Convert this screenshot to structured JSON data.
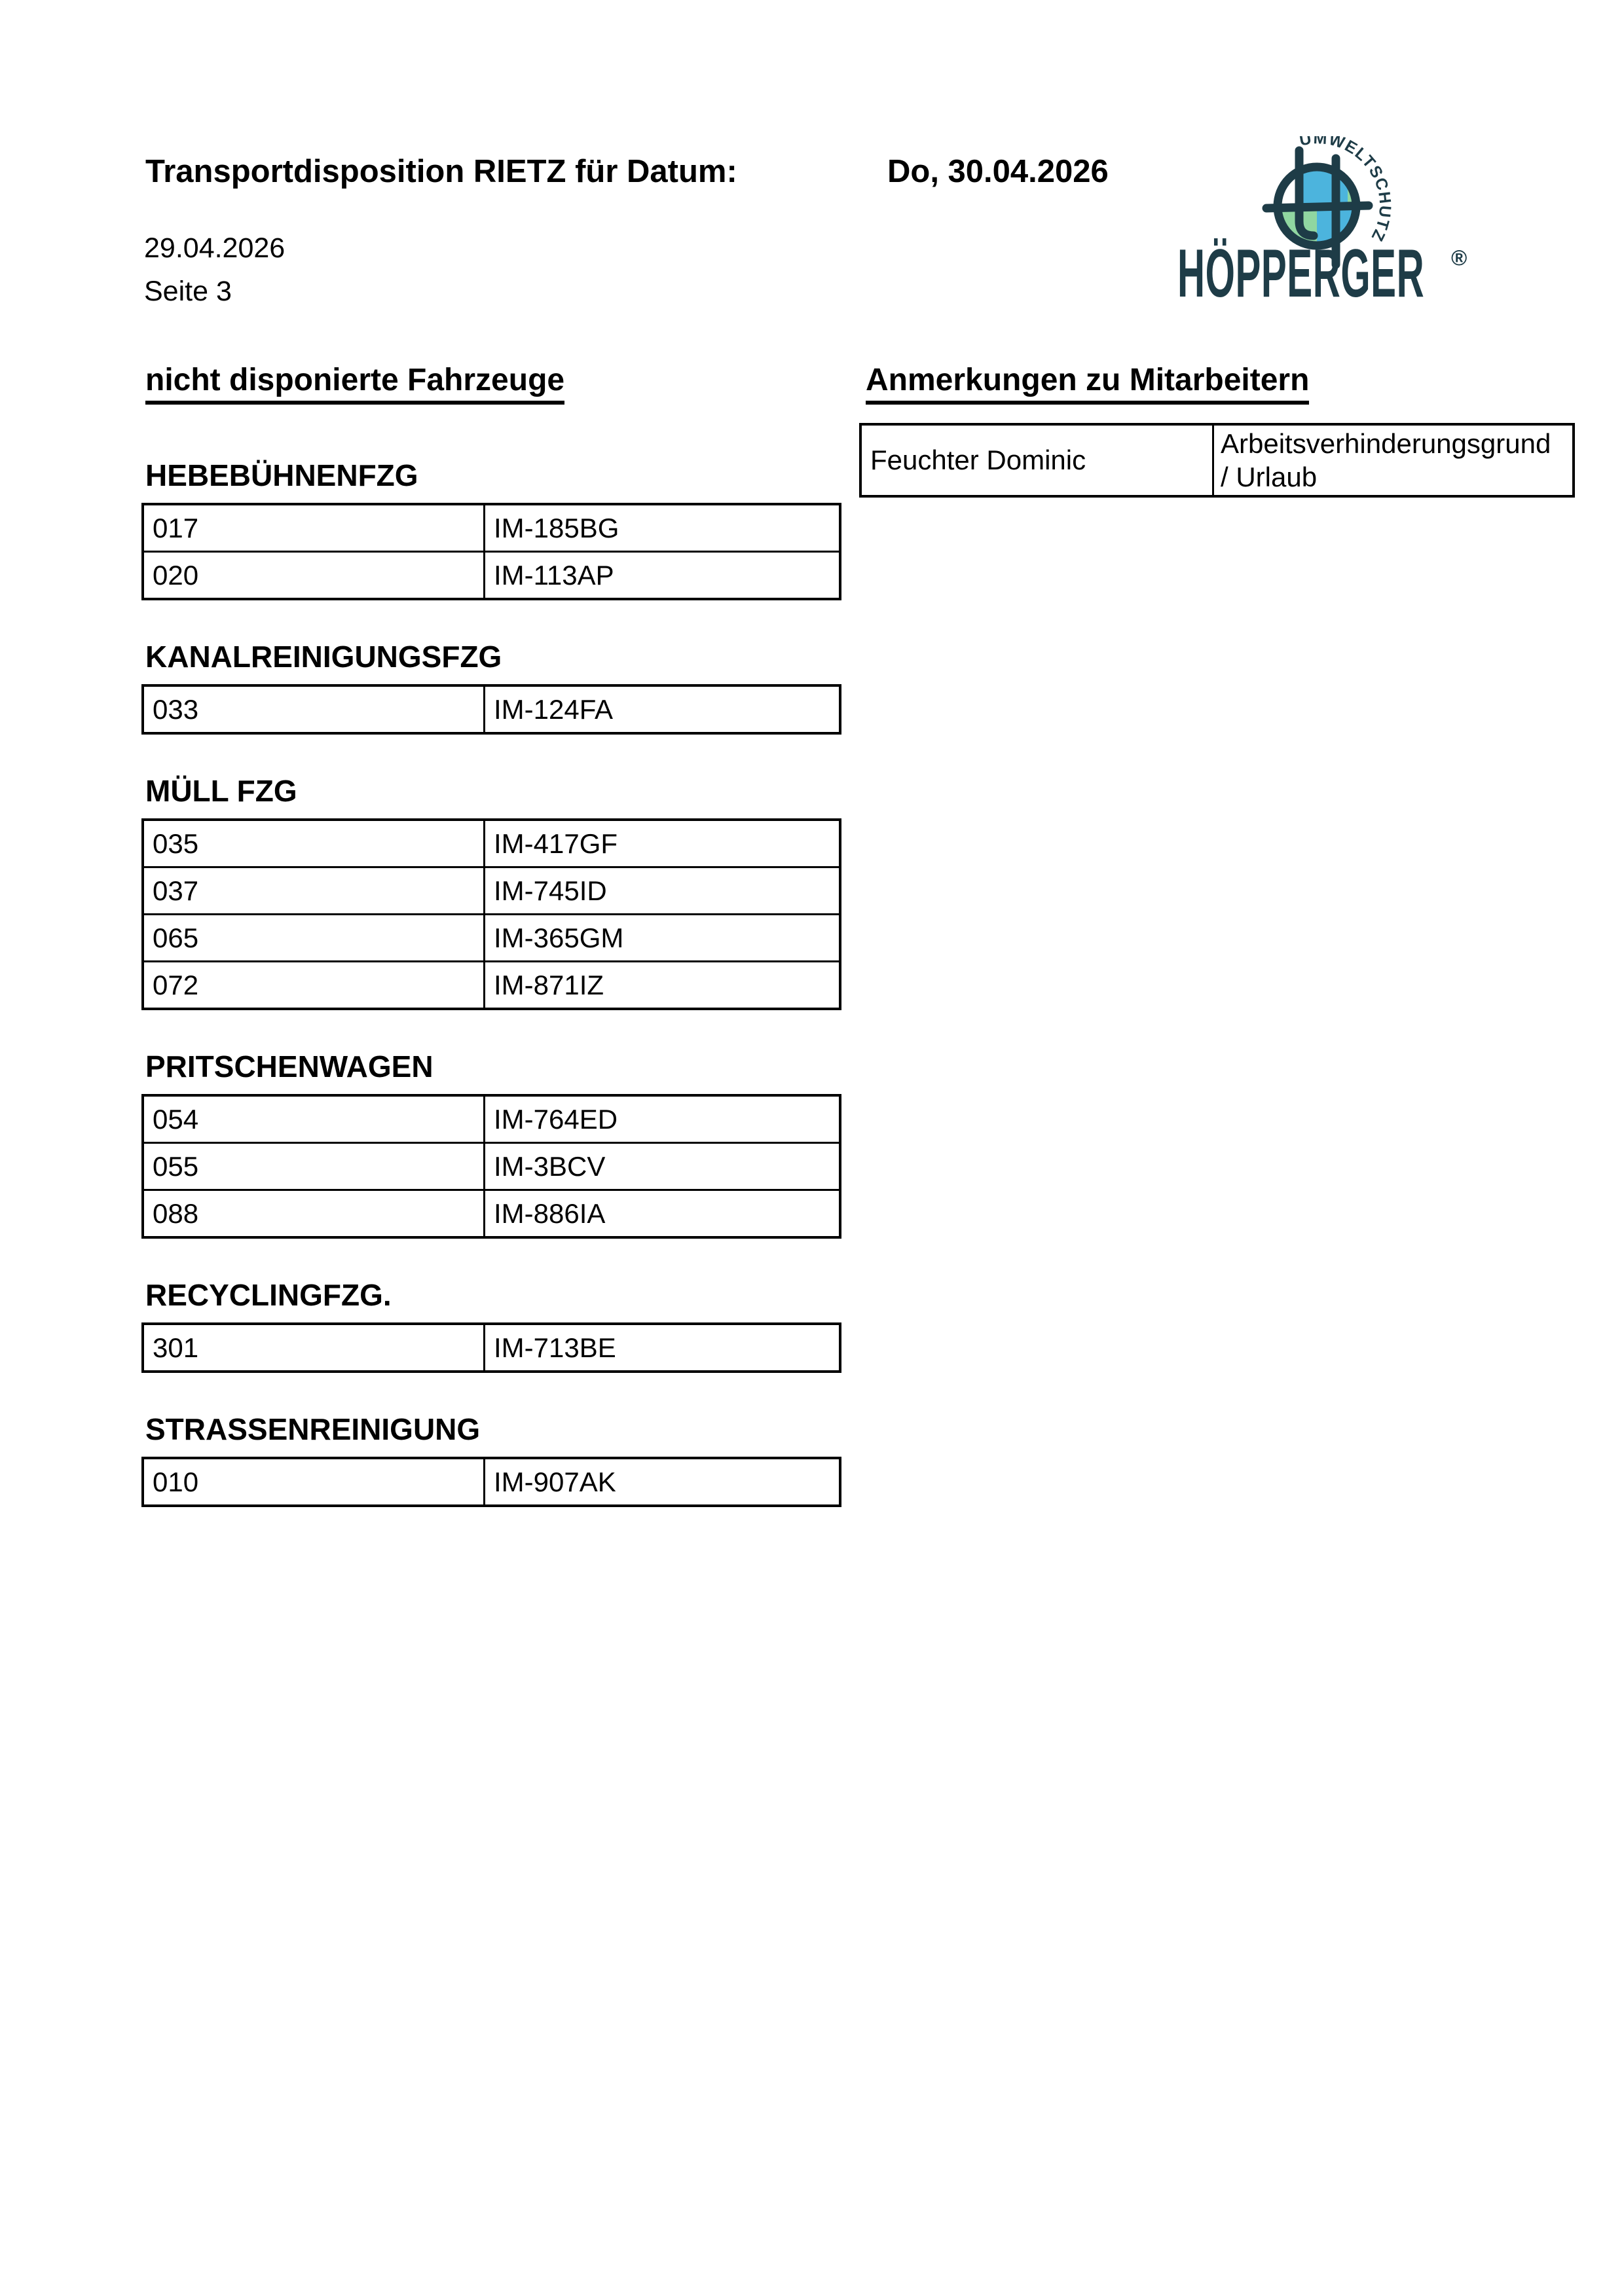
{
  "header": {
    "title_label": "Transportdisposition RIETZ für Datum:",
    "title_date": "Do, 30.04.2026",
    "created_date": "29.04.2026",
    "page_label": "Seite 3"
  },
  "logo": {
    "arc_text": "UMWELTSCHUTZ",
    "brand": "HÖPPERGER",
    "registered_mark": "®",
    "colors": {
      "dark": "#1e3c47",
      "blue": "#4cb4dd",
      "green": "#90d7a1"
    }
  },
  "vehicles_section": {
    "heading": "nicht disponierte Fahrzeuge",
    "groups": [
      {
        "name": "HEBEBÜHNENFZG",
        "rows": [
          [
            "017",
            "IM-185BG"
          ],
          [
            "020",
            "IM-113AP"
          ]
        ]
      },
      {
        "name": "KANALREINIGUNGSFZG",
        "rows": [
          [
            "033",
            "IM-124FA"
          ]
        ]
      },
      {
        "name": "MÜLL FZG",
        "rows": [
          [
            "035",
            "IM-417GF"
          ],
          [
            "037",
            "IM-745ID"
          ],
          [
            "065",
            "IM-365GM"
          ],
          [
            "072",
            "IM-871IZ"
          ]
        ]
      },
      {
        "name": "PRITSCHENWAGEN",
        "rows": [
          [
            "054",
            "IM-764ED"
          ],
          [
            "055",
            "IM-3BCV"
          ],
          [
            "088",
            "IM-886IA"
          ]
        ]
      },
      {
        "name": "RECYCLINGFZG.",
        "rows": [
          [
            "301",
            "IM-713BE"
          ]
        ]
      },
      {
        "name": "STRASSENREINIGUNG",
        "rows": [
          [
            "010",
            "IM-907AK"
          ]
        ]
      }
    ]
  },
  "remarks_section": {
    "heading": "Anmerkungen zu Mitarbeitern",
    "rows": [
      {
        "employee": "Feuchter Dominic",
        "remark": "Arbeitsverhinderungsgrund / Urlaub"
      }
    ]
  }
}
